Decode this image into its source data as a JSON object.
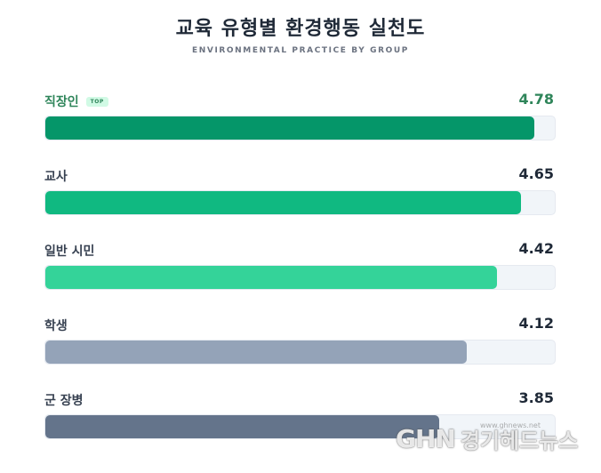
{
  "chart_data": {
    "type": "bar",
    "orientation": "horizontal",
    "title": "교육 유형별 환경행동 실천도",
    "subtitle": "ENVIRONMENTAL PRACTICE BY GROUP",
    "categories": [
      "직장인",
      "교사",
      "일반 시민",
      "학생",
      "군 장병"
    ],
    "values": [
      4.78,
      4.65,
      4.42,
      4.12,
      3.85
    ],
    "value_labels": [
      "4.78",
      "4.65",
      "4.42",
      "4.12",
      "3.85"
    ],
    "xlim": [
      0,
      5
    ],
    "badges": [
      "TOP",
      "",
      "",
      "",
      ""
    ],
    "colors": [
      "#059669",
      "#10b981",
      "#34d399",
      "#94a3b8",
      "#64748b"
    ],
    "grid": false
  },
  "watermark": {
    "logo": "GHN",
    "name": "경기헤드뉴스",
    "url": "www.ghnews.net"
  }
}
